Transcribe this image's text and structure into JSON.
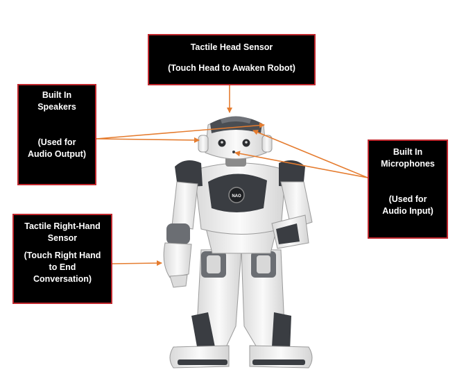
{
  "labels": {
    "head": {
      "title": "Tactile Head Sensor",
      "note": "(Touch Head to Awaken Robot)"
    },
    "speakers": {
      "title_line1": "Built In",
      "title_line2": "Speakers",
      "note_line1": "(Used for",
      "note_line2": "Audio Output)"
    },
    "microphones": {
      "title_line1": "Built In",
      "title_line2": "Microphones",
      "note_line1": "(Used for",
      "note_line2": "Audio Input)"
    },
    "hand": {
      "title_line1": "Tactile Right-Hand",
      "title_line2": "Sensor",
      "note_line1": "(Touch Right Hand",
      "note_line2": "to End",
      "note_line3": "Conversation)"
    }
  },
  "robot_badge": "NAO",
  "colors": {
    "box_fill": "#000000",
    "box_border": "#c0272d",
    "arrow": "#e57c2f",
    "robot_shell": "#f2f2f2",
    "robot_dark": "#3a3d42"
  }
}
